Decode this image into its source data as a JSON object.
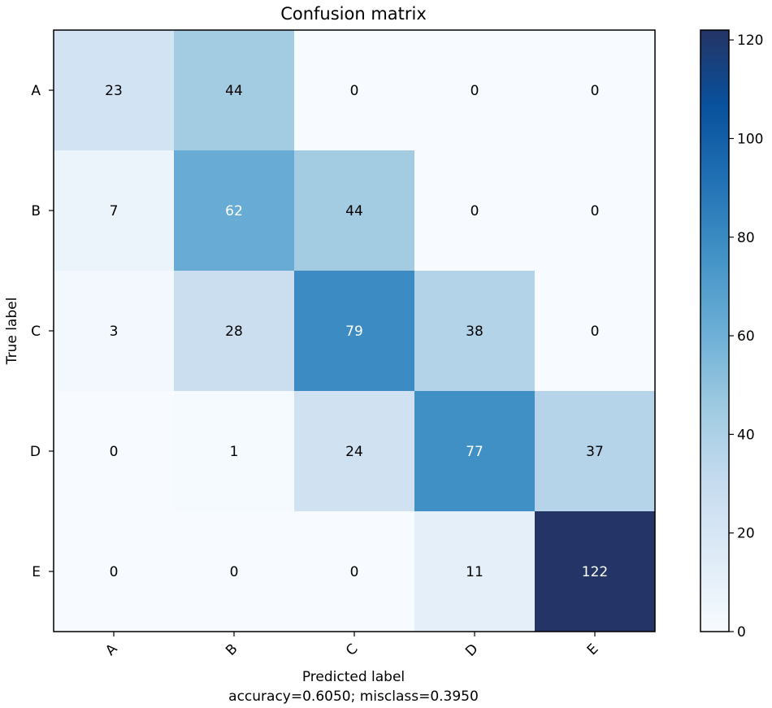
{
  "chart_data": {
    "type": "heatmap",
    "title": "Confusion matrix",
    "xlabel": "Predicted label",
    "xlabel_sub": "accuracy=0.6050; misclass=0.3950",
    "ylabel": "True label",
    "row_labels": [
      "A",
      "B",
      "C",
      "D",
      "E"
    ],
    "col_labels": [
      "A",
      "B",
      "C",
      "D",
      "E"
    ],
    "matrix": [
      [
        23,
        44,
        0,
        0,
        0
      ],
      [
        7,
        62,
        44,
        0,
        0
      ],
      [
        3,
        28,
        79,
        38,
        0
      ],
      [
        0,
        1,
        24,
        77,
        37
      ],
      [
        0,
        0,
        0,
        11,
        122
      ]
    ],
    "colormap": "Blues",
    "colorbar": {
      "min": 0,
      "max": 122,
      "ticks": [
        0,
        20,
        40,
        60,
        80,
        100,
        120
      ]
    },
    "text_threshold": 61
  }
}
